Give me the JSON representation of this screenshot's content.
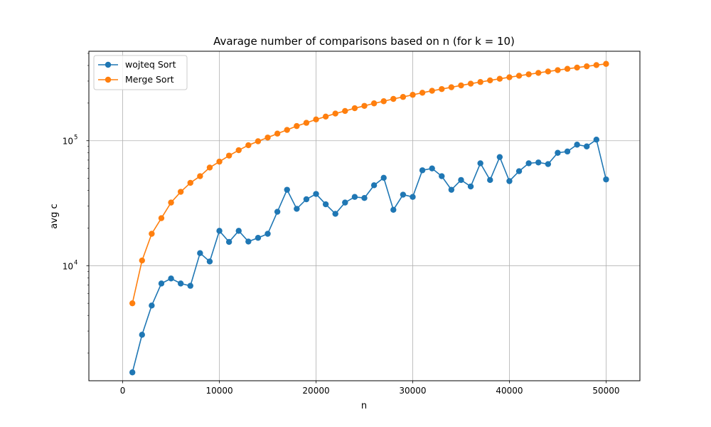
{
  "chart_data": {
    "type": "line",
    "title": "Avarage number of comparisons based on n (for k = 10)",
    "xlabel": "n",
    "ylabel": "avg c",
    "yscale": "log",
    "xlim": [
      -3500,
      53500
    ],
    "ylim": [
      1200,
      520000
    ],
    "xticks": [
      0,
      10000,
      20000,
      30000,
      40000,
      50000
    ],
    "x_tick_labels": [
      "0",
      "10000",
      "20000",
      "30000",
      "40000",
      "50000"
    ],
    "yticks_major": [
      10000,
      100000
    ],
    "y_tick_labels": [
      {
        "base": "10",
        "exp": "4"
      },
      {
        "base": "10",
        "exp": "5"
      }
    ],
    "grid": true,
    "legend_position": "top-left",
    "x": [
      1000,
      2000,
      3000,
      4000,
      5000,
      6000,
      7000,
      8000,
      9000,
      10000,
      11000,
      12000,
      13000,
      14000,
      15000,
      16000,
      17000,
      18000,
      19000,
      20000,
      21000,
      22000,
      23000,
      24000,
      25000,
      26000,
      27000,
      28000,
      29000,
      30000,
      31000,
      32000,
      33000,
      34000,
      35000,
      36000,
      37000,
      38000,
      39000,
      40000,
      41000,
      42000,
      43000,
      44000,
      45000,
      46000,
      47000,
      48000,
      49000,
      50000
    ],
    "series": [
      {
        "name": "wojteq Sort",
        "color": "#1f77b4",
        "values": [
          1400,
          2800,
          4800,
          7200,
          7900,
          7200,
          6900,
          12600,
          10800,
          19000,
          15500,
          19000,
          15600,
          16700,
          18000,
          27000,
          40500,
          28500,
          34000,
          37500,
          31000,
          26000,
          32000,
          35500,
          34800,
          44000,
          50500,
          28000,
          37000,
          35500,
          58000,
          60000,
          52000,
          40500,
          48500,
          43000,
          66000,
          48500,
          74000,
          47500,
          57000,
          66000,
          67000,
          65000,
          80000,
          82000,
          93000,
          90000,
          102000,
          49000
        ]
      },
      {
        "name": "Merge Sort",
        "color": "#ff7f0e",
        "values": [
          5000,
          11000,
          18000,
          24000,
          32000,
          39000,
          46000,
          52000,
          61000,
          68000,
          76000,
          84000,
          92000,
          99000,
          106000,
          114000,
          122000,
          131000,
          139000,
          148000,
          156000,
          165000,
          173000,
          182000,
          190000,
          199000,
          207000,
          216000,
          224000,
          233000,
          242000,
          251000,
          259000,
          268000,
          277000,
          286000,
          295000,
          304000,
          313000,
          322000,
          331000,
          340000,
          349000,
          358000,
          367000,
          376000,
          385000,
          394000,
          403000,
          412000
        ]
      }
    ]
  }
}
